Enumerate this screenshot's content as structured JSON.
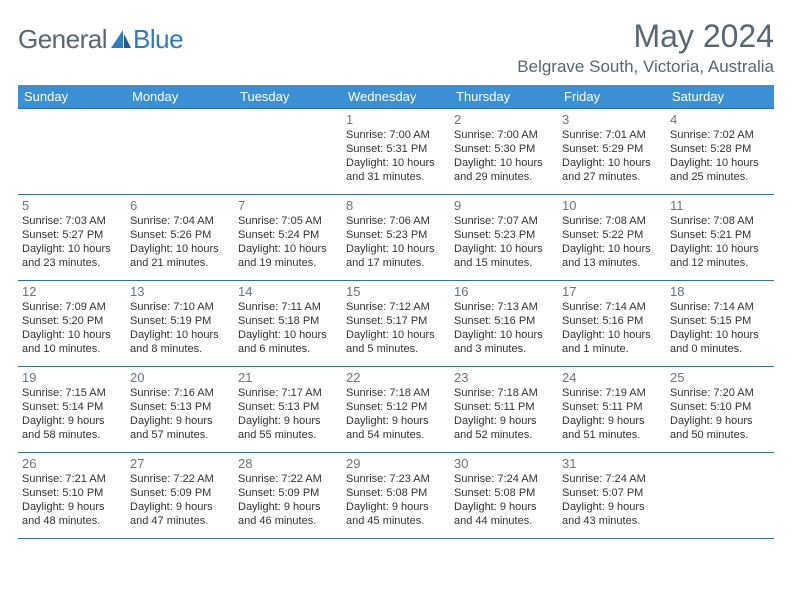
{
  "brand": {
    "part1": "General",
    "part2": "Blue",
    "accent": "#2e7bc0",
    "neutral": "#5a6670"
  },
  "title": "May 2024",
  "location": "Belgrave South, Victoria, Australia",
  "header_bg": "#3b8fd4",
  "border_color": "#3b6fa0",
  "day_headers": [
    "Sunday",
    "Monday",
    "Tuesday",
    "Wednesday",
    "Thursday",
    "Friday",
    "Saturday"
  ],
  "weeks": [
    [
      {
        "day": "",
        "sunrise": "",
        "sunset": "",
        "daylight1": "",
        "daylight2": ""
      },
      {
        "day": "",
        "sunrise": "",
        "sunset": "",
        "daylight1": "",
        "daylight2": ""
      },
      {
        "day": "",
        "sunrise": "",
        "sunset": "",
        "daylight1": "",
        "daylight2": ""
      },
      {
        "day": "1",
        "sunrise": "Sunrise: 7:00 AM",
        "sunset": "Sunset: 5:31 PM",
        "daylight1": "Daylight: 10 hours",
        "daylight2": "and 31 minutes."
      },
      {
        "day": "2",
        "sunrise": "Sunrise: 7:00 AM",
        "sunset": "Sunset: 5:30 PM",
        "daylight1": "Daylight: 10 hours",
        "daylight2": "and 29 minutes."
      },
      {
        "day": "3",
        "sunrise": "Sunrise: 7:01 AM",
        "sunset": "Sunset: 5:29 PM",
        "daylight1": "Daylight: 10 hours",
        "daylight2": "and 27 minutes."
      },
      {
        "day": "4",
        "sunrise": "Sunrise: 7:02 AM",
        "sunset": "Sunset: 5:28 PM",
        "daylight1": "Daylight: 10 hours",
        "daylight2": "and 25 minutes."
      }
    ],
    [
      {
        "day": "5",
        "sunrise": "Sunrise: 7:03 AM",
        "sunset": "Sunset: 5:27 PM",
        "daylight1": "Daylight: 10 hours",
        "daylight2": "and 23 minutes."
      },
      {
        "day": "6",
        "sunrise": "Sunrise: 7:04 AM",
        "sunset": "Sunset: 5:26 PM",
        "daylight1": "Daylight: 10 hours",
        "daylight2": "and 21 minutes."
      },
      {
        "day": "7",
        "sunrise": "Sunrise: 7:05 AM",
        "sunset": "Sunset: 5:24 PM",
        "daylight1": "Daylight: 10 hours",
        "daylight2": "and 19 minutes."
      },
      {
        "day": "8",
        "sunrise": "Sunrise: 7:06 AM",
        "sunset": "Sunset: 5:23 PM",
        "daylight1": "Daylight: 10 hours",
        "daylight2": "and 17 minutes."
      },
      {
        "day": "9",
        "sunrise": "Sunrise: 7:07 AM",
        "sunset": "Sunset: 5:23 PM",
        "daylight1": "Daylight: 10 hours",
        "daylight2": "and 15 minutes."
      },
      {
        "day": "10",
        "sunrise": "Sunrise: 7:08 AM",
        "sunset": "Sunset: 5:22 PM",
        "daylight1": "Daylight: 10 hours",
        "daylight2": "and 13 minutes."
      },
      {
        "day": "11",
        "sunrise": "Sunrise: 7:08 AM",
        "sunset": "Sunset: 5:21 PM",
        "daylight1": "Daylight: 10 hours",
        "daylight2": "and 12 minutes."
      }
    ],
    [
      {
        "day": "12",
        "sunrise": "Sunrise: 7:09 AM",
        "sunset": "Sunset: 5:20 PM",
        "daylight1": "Daylight: 10 hours",
        "daylight2": "and 10 minutes."
      },
      {
        "day": "13",
        "sunrise": "Sunrise: 7:10 AM",
        "sunset": "Sunset: 5:19 PM",
        "daylight1": "Daylight: 10 hours",
        "daylight2": "and 8 minutes."
      },
      {
        "day": "14",
        "sunrise": "Sunrise: 7:11 AM",
        "sunset": "Sunset: 5:18 PM",
        "daylight1": "Daylight: 10 hours",
        "daylight2": "and 6 minutes."
      },
      {
        "day": "15",
        "sunrise": "Sunrise: 7:12 AM",
        "sunset": "Sunset: 5:17 PM",
        "daylight1": "Daylight: 10 hours",
        "daylight2": "and 5 minutes."
      },
      {
        "day": "16",
        "sunrise": "Sunrise: 7:13 AM",
        "sunset": "Sunset: 5:16 PM",
        "daylight1": "Daylight: 10 hours",
        "daylight2": "and 3 minutes."
      },
      {
        "day": "17",
        "sunrise": "Sunrise: 7:14 AM",
        "sunset": "Sunset: 5:16 PM",
        "daylight1": "Daylight: 10 hours",
        "daylight2": "and 1 minute."
      },
      {
        "day": "18",
        "sunrise": "Sunrise: 7:14 AM",
        "sunset": "Sunset: 5:15 PM",
        "daylight1": "Daylight: 10 hours",
        "daylight2": "and 0 minutes."
      }
    ],
    [
      {
        "day": "19",
        "sunrise": "Sunrise: 7:15 AM",
        "sunset": "Sunset: 5:14 PM",
        "daylight1": "Daylight: 9 hours",
        "daylight2": "and 58 minutes."
      },
      {
        "day": "20",
        "sunrise": "Sunrise: 7:16 AM",
        "sunset": "Sunset: 5:13 PM",
        "daylight1": "Daylight: 9 hours",
        "daylight2": "and 57 minutes."
      },
      {
        "day": "21",
        "sunrise": "Sunrise: 7:17 AM",
        "sunset": "Sunset: 5:13 PM",
        "daylight1": "Daylight: 9 hours",
        "daylight2": "and 55 minutes."
      },
      {
        "day": "22",
        "sunrise": "Sunrise: 7:18 AM",
        "sunset": "Sunset: 5:12 PM",
        "daylight1": "Daylight: 9 hours",
        "daylight2": "and 54 minutes."
      },
      {
        "day": "23",
        "sunrise": "Sunrise: 7:18 AM",
        "sunset": "Sunset: 5:11 PM",
        "daylight1": "Daylight: 9 hours",
        "daylight2": "and 52 minutes."
      },
      {
        "day": "24",
        "sunrise": "Sunrise: 7:19 AM",
        "sunset": "Sunset: 5:11 PM",
        "daylight1": "Daylight: 9 hours",
        "daylight2": "and 51 minutes."
      },
      {
        "day": "25",
        "sunrise": "Sunrise: 7:20 AM",
        "sunset": "Sunset: 5:10 PM",
        "daylight1": "Daylight: 9 hours",
        "daylight2": "and 50 minutes."
      }
    ],
    [
      {
        "day": "26",
        "sunrise": "Sunrise: 7:21 AM",
        "sunset": "Sunset: 5:10 PM",
        "daylight1": "Daylight: 9 hours",
        "daylight2": "and 48 minutes."
      },
      {
        "day": "27",
        "sunrise": "Sunrise: 7:22 AM",
        "sunset": "Sunset: 5:09 PM",
        "daylight1": "Daylight: 9 hours",
        "daylight2": "and 47 minutes."
      },
      {
        "day": "28",
        "sunrise": "Sunrise: 7:22 AM",
        "sunset": "Sunset: 5:09 PM",
        "daylight1": "Daylight: 9 hours",
        "daylight2": "and 46 minutes."
      },
      {
        "day": "29",
        "sunrise": "Sunrise: 7:23 AM",
        "sunset": "Sunset: 5:08 PM",
        "daylight1": "Daylight: 9 hours",
        "daylight2": "and 45 minutes."
      },
      {
        "day": "30",
        "sunrise": "Sunrise: 7:24 AM",
        "sunset": "Sunset: 5:08 PM",
        "daylight1": "Daylight: 9 hours",
        "daylight2": "and 44 minutes."
      },
      {
        "day": "31",
        "sunrise": "Sunrise: 7:24 AM",
        "sunset": "Sunset: 5:07 PM",
        "daylight1": "Daylight: 9 hours",
        "daylight2": "and 43 minutes."
      },
      {
        "day": "",
        "sunrise": "",
        "sunset": "",
        "daylight1": "",
        "daylight2": ""
      }
    ]
  ]
}
